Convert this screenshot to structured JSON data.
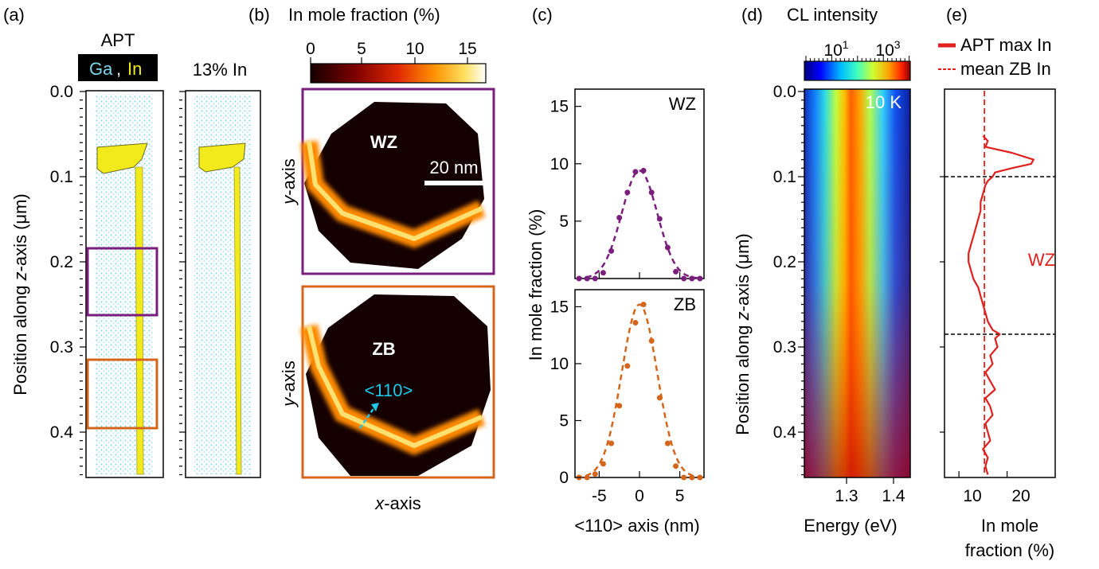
{
  "panels": {
    "a": {
      "label": "(a)",
      "title": "APT",
      "legend_ga": "Ga",
      "legend_comma": ",",
      "legend_in": "In",
      "title2": "13% In",
      "ylabel_pre": "Position along ",
      "ylabel_ital": "z",
      "ylabel_post": "-axis (μm)",
      "yticks": [
        "0.0",
        "0.1",
        "0.2",
        "0.3",
        "0.4"
      ],
      "colors": {
        "ga": "#7ed6e8",
        "in": "#f2ea1a",
        "wz_box": "#7b1f7e",
        "zb_box": "#d4661c"
      }
    },
    "b": {
      "label": "(b)",
      "title": "In mole fraction (%)",
      "cbar_ticks": [
        "0",
        "5",
        "10",
        "15"
      ],
      "top_label": "WZ",
      "bottom_label": "ZB",
      "scalebar": "20 nm",
      "direction": "<110>",
      "ylabel_ital": "y",
      "ylabel_post": "-axis",
      "xlabel_ital": "x",
      "xlabel_post": "-axis"
    },
    "c": {
      "label": "(c)",
      "ylabel": "In mole fraction (%)",
      "xlabel": "<110> axis (nm)",
      "top_tag": "WZ",
      "bottom_tag": "ZB",
      "top_yticks": [
        "5",
        "10",
        "15"
      ],
      "bottom_yticks": [
        "0",
        "5",
        "10",
        "15"
      ],
      "xticks": [
        "-5",
        "0",
        "5"
      ]
    },
    "d": {
      "label": "(d)",
      "title": "CL intensity",
      "cbar_ticks": [
        "10",
        "10"
      ],
      "cbar_exps": [
        "1",
        "3"
      ],
      "temp": "10 K",
      "ylabel_pre": "Position along ",
      "ylabel_ital": "z",
      "ylabel_post": "-axis (μm)",
      "yticks": [
        "0.0",
        "0.1",
        "0.2",
        "0.3",
        "0.4"
      ],
      "xticks": [
        "1.3",
        "1.4"
      ],
      "xlabel": "Energy (eV)"
    },
    "e": {
      "label": "(e)",
      "legend_solid": "APT max In",
      "legend_dash": "mean ZB In",
      "region": "WZ",
      "xticks": [
        "10",
        "20"
      ],
      "xlabel_line1": "In mole",
      "xlabel_line2": "fraction (%)"
    }
  },
  "chart_data": [
    {
      "type": "scatter",
      "panel": "c-top",
      "series": [
        {
          "name": "WZ",
          "color": "#7b1f7e",
          "x": [
            -7.5,
            -6.5,
            -5.5,
            -4.5,
            -3.5,
            -2.5,
            -1.5,
            -0.5,
            0.5,
            1.5,
            2.5,
            3.5,
            4.5,
            5.5,
            6.5,
            7.5
          ],
          "y": [
            0,
            0,
            0,
            0.5,
            2.4,
            5.3,
            7.5,
            9.3,
            9.4,
            7.5,
            5.2,
            2.7,
            0.6,
            0,
            0,
            0
          ]
        }
      ],
      "xlim": [
        -8,
        8
      ],
      "ylim": [
        0,
        16.5
      ]
    },
    {
      "type": "scatter",
      "panel": "c-bottom",
      "series": [
        {
          "name": "ZB",
          "color": "#d4661c",
          "x": [
            -7.5,
            -6.5,
            -5.5,
            -4.5,
            -3.5,
            -2.5,
            -1.5,
            -0.5,
            0.5,
            1.5,
            2.5,
            3.5,
            4.5,
            5.5,
            6.5,
            7.5
          ],
          "y": [
            0,
            0,
            0.3,
            1.2,
            3.0,
            6.3,
            9.8,
            13.6,
            15.2,
            12.0,
            7.0,
            3.0,
            1.0,
            0,
            0,
            0
          ]
        }
      ],
      "xlim": [
        -8,
        8
      ],
      "ylim": [
        0,
        16.5
      ]
    },
    {
      "type": "line",
      "panel": "e",
      "series": [
        {
          "name": "APT max In",
          "color": "#e0201c",
          "y": [
            0.052,
            0.058,
            0.065,
            0.072,
            0.08,
            0.085,
            0.09,
            0.095,
            0.1,
            0.105,
            0.11,
            0.12,
            0.13,
            0.14,
            0.15,
            0.16,
            0.17,
            0.18,
            0.19,
            0.2,
            0.21,
            0.22,
            0.23,
            0.24,
            0.25,
            0.26,
            0.27,
            0.28,
            0.285,
            0.29,
            0.3,
            0.31,
            0.32,
            0.33,
            0.34,
            0.35,
            0.36,
            0.37,
            0.38,
            0.39,
            0.4,
            0.41,
            0.42,
            0.43,
            0.44,
            0.45
          ],
          "x": [
            15.0,
            16.0,
            15.5,
            21.0,
            25.5,
            25.0,
            21.0,
            17.5,
            17.0,
            16.0,
            15.5,
            15.0,
            14.5,
            14.5,
            14.0,
            13.5,
            13.0,
            12.5,
            12.0,
            12.0,
            12.5,
            13.0,
            14.0,
            14.5,
            15.0,
            15.5,
            16.0,
            17.0,
            18.5,
            17.5,
            18.0,
            16.5,
            17.0,
            15.5,
            16.5,
            17.5,
            15.5,
            16.5,
            17.0,
            15.5,
            16.0,
            16.5,
            15.0,
            16.0,
            15.5,
            16.0
          ]
        },
        {
          "name": "mean ZB In",
          "color": "#e0201c",
          "x": [
            15.3,
            15.3
          ]
        }
      ],
      "xlim": [
        7,
        30
      ],
      "ylim": [
        0,
        0.45
      ],
      "hlines": [
        0.1,
        0.285
      ]
    }
  ]
}
